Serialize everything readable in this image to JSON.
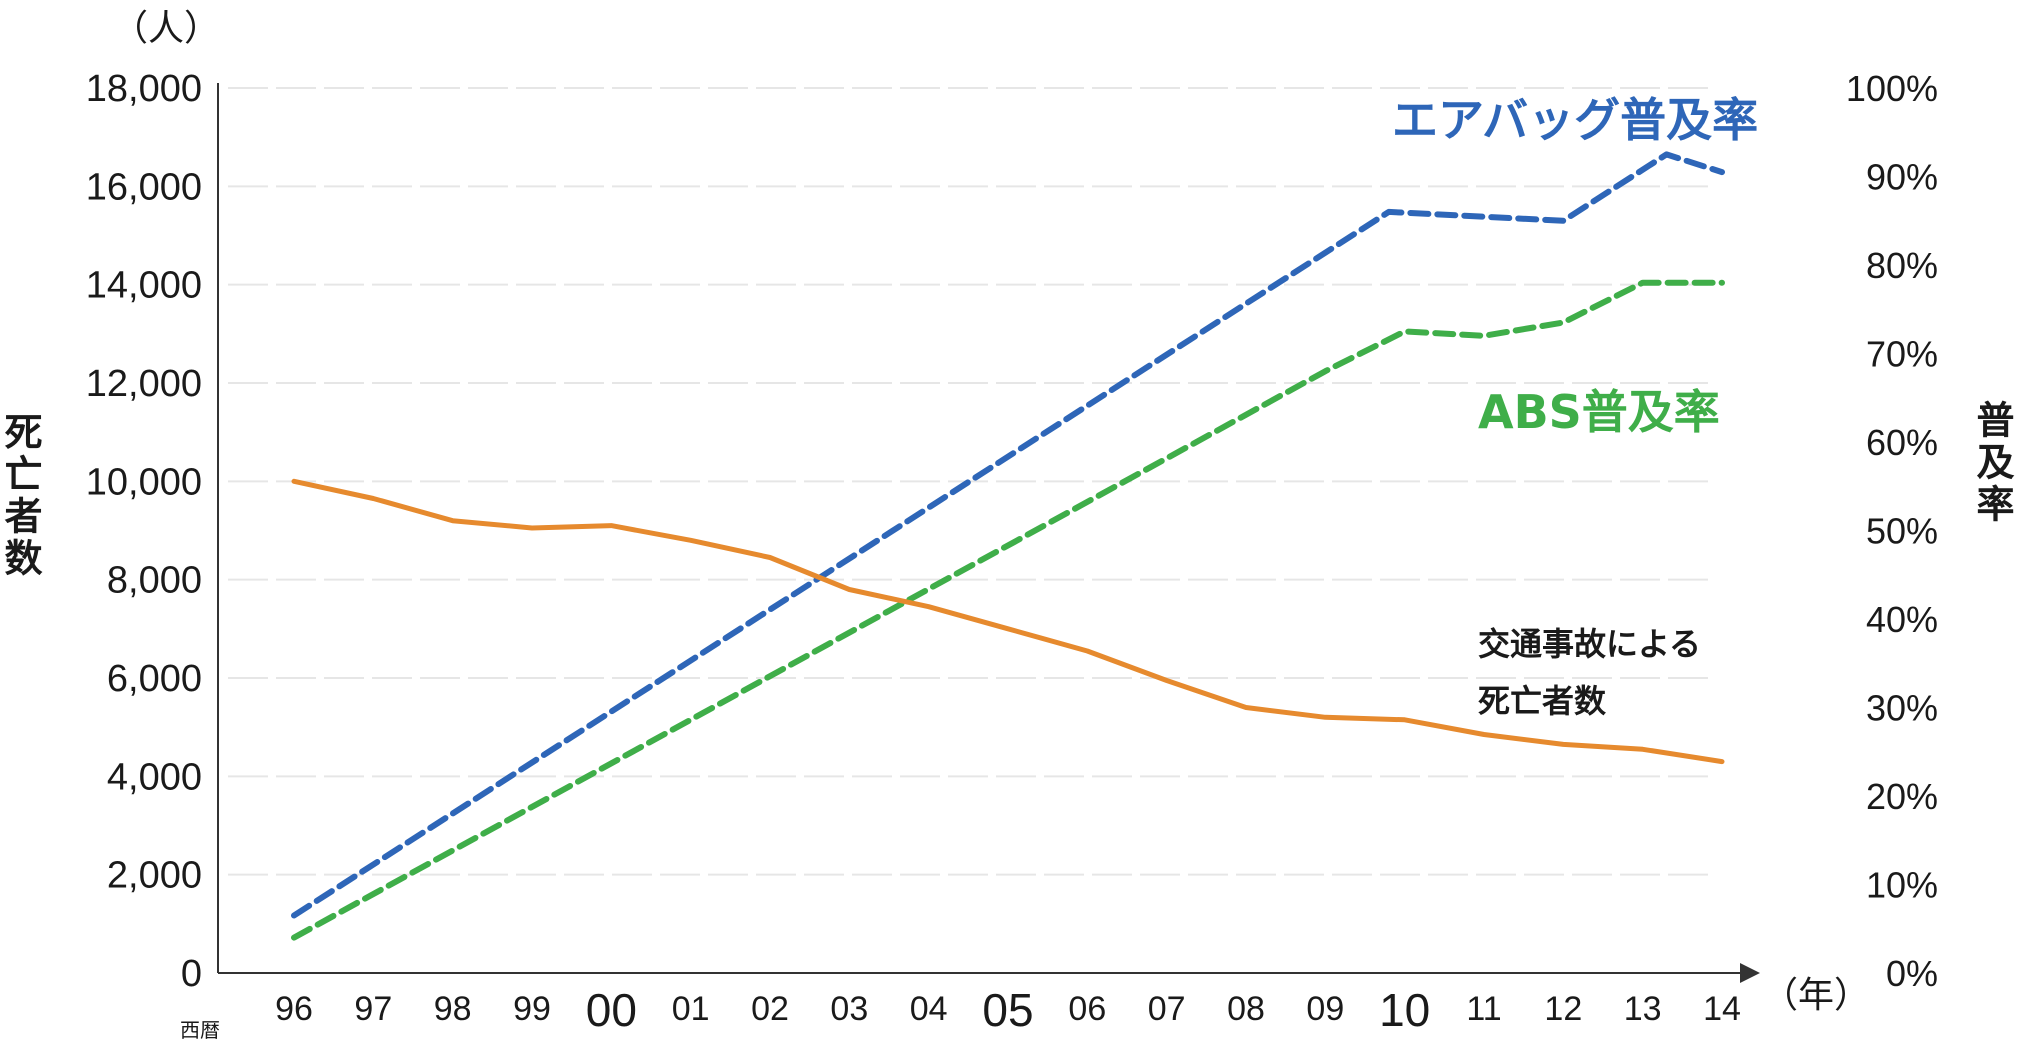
{
  "chart_data": {
    "type": "line",
    "left_axis": {
      "unit": "（人）",
      "label": "死亡者数",
      "ylim": [
        0,
        18000
      ],
      "ticks": [
        "0",
        "2,000",
        "4,000",
        "6,000",
        "8,000",
        "10,000",
        "12,000",
        "14,000",
        "16,000",
        "18,000"
      ]
    },
    "right_axis": {
      "label": "普及率",
      "ylim": [
        0,
        100
      ],
      "ticks": [
        "0%",
        "10%",
        "20%",
        "30%",
        "40%",
        "50%",
        "60%",
        "70%",
        "80%",
        "90%",
        "100%"
      ]
    },
    "x_axis": {
      "prefix": "西暦",
      "unit": "（年）",
      "categories": [
        "96",
        "97",
        "98",
        "99",
        "00",
        "01",
        "02",
        "03",
        "04",
        "05",
        "06",
        "07",
        "08",
        "09",
        "10",
        "11",
        "12",
        "13",
        "14"
      ],
      "emphasized": [
        "00",
        "05",
        "10"
      ]
    },
    "grid": true,
    "series": [
      {
        "name": "エアバッグ普及率",
        "axis": "right",
        "style": "dashed",
        "color": "#2e66b8",
        "x": [
          1996,
          2009.8,
          2012,
          2013.3,
          2014
        ],
        "values": [
          6.5,
          86,
          85,
          92.5,
          90.5
        ]
      },
      {
        "name": "ABS普及率",
        "axis": "right",
        "style": "dashed",
        "color": "#3fae49",
        "x": [
          1996,
          2009,
          2010,
          2011,
          2012,
          2013,
          2014
        ],
        "values": [
          4,
          68,
          72.5,
          72,
          73.5,
          78,
          78
        ]
      },
      {
        "name_lines": [
          "交通事故による",
          "死亡者数"
        ],
        "axis": "left",
        "style": "solid",
        "color": "#e68a2e",
        "x": [
          1996,
          1997,
          1998,
          1999,
          2000,
          2001,
          2002,
          2003,
          2004,
          2005,
          2006,
          2007,
          2008,
          2009,
          2010,
          2011,
          2012,
          2013,
          2014
        ],
        "values": [
          10000,
          9650,
          9200,
          9050,
          9100,
          8800,
          8450,
          7800,
          7450,
          7000,
          6550,
          5950,
          5400,
          5200,
          5150,
          4850,
          4650,
          4550,
          4300
        ]
      }
    ]
  }
}
